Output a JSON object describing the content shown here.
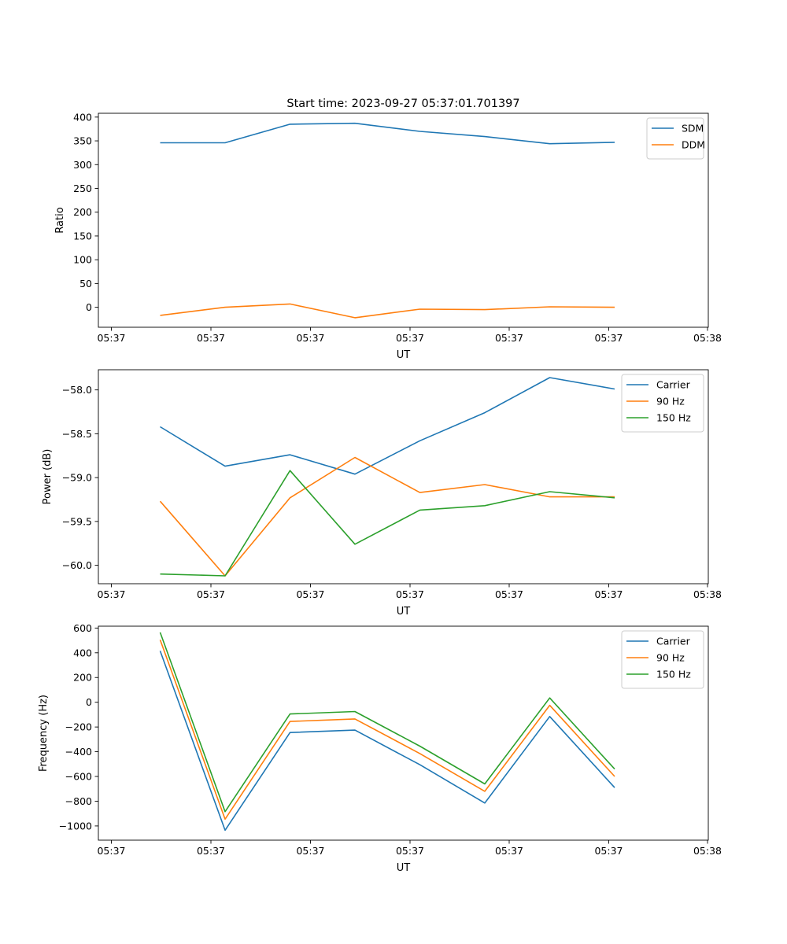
{
  "title": "Start time: 2023-09-27 05:37:01.701397",
  "colors": {
    "blue": "#1f77b4",
    "orange": "#ff7f0e",
    "green": "#2ca02c"
  },
  "chart_data": [
    {
      "type": "line",
      "xlabel": "UT",
      "ylabel": "Ratio",
      "x_tick_labels": [
        "05:37",
        "05:37",
        "05:37",
        "05:37",
        "05:37",
        "05:37",
        "05:37"
      ],
      "x_end_label": "05:38",
      "ylim": [
        -42,
        408
      ],
      "yticks": [
        0,
        50,
        100,
        150,
        200,
        250,
        300,
        350,
        400
      ],
      "ytick_labels": [
        "0",
        "50",
        "100",
        "150",
        "200",
        "250",
        "300",
        "350",
        "400"
      ],
      "legend_position": "top-right",
      "series": [
        {
          "name": "SDM",
          "color": "#1f77b4",
          "values": [
            346,
            346,
            385,
            387,
            370,
            359,
            344,
            347
          ]
        },
        {
          "name": "DDM",
          "color": "#ff7f0e",
          "values": [
            -17,
            0,
            7,
            -22,
            -4,
            -5,
            1,
            0
          ]
        }
      ]
    },
    {
      "type": "line",
      "xlabel": "UT",
      "ylabel": "Power (dB)",
      "x_tick_labels": [
        "05:37",
        "05:37",
        "05:37",
        "05:37",
        "05:37",
        "05:37",
        "05:37"
      ],
      "x_end_label": "05:38",
      "ylim": [
        -60.21,
        -57.77
      ],
      "yticks": [
        -60.0,
        -59.5,
        -59.0,
        -58.5,
        -58.0
      ],
      "ytick_labels": [
        "−60.0",
        "−59.5",
        "−59.0",
        "−58.5",
        "−58.0"
      ],
      "legend_position": "top-right",
      "series": [
        {
          "name": "Carrier",
          "color": "#1f77b4",
          "values": [
            -58.42,
            -58.87,
            -58.74,
            -58.96,
            -58.58,
            -58.26,
            -57.86,
            -57.99
          ]
        },
        {
          "name": "90 Hz",
          "color": "#ff7f0e",
          "values": [
            -59.27,
            -60.12,
            -59.23,
            -58.77,
            -59.17,
            -59.08,
            -59.22,
            -59.22
          ]
        },
        {
          "name": "150 Hz",
          "color": "#2ca02c",
          "values": [
            -60.1,
            -60.12,
            -58.92,
            -59.76,
            -59.37,
            -59.32,
            -59.16,
            -59.23
          ]
        }
      ]
    },
    {
      "type": "line",
      "xlabel": "UT",
      "ylabel": "Frequency (Hz)",
      "x_tick_labels": [
        "05:37",
        "05:37",
        "05:37",
        "05:37",
        "05:37",
        "05:37",
        "05:37"
      ],
      "x_end_label": "05:38",
      "ylim": [
        -1115,
        615
      ],
      "yticks": [
        -1000,
        -800,
        -600,
        -400,
        -200,
        0,
        200,
        400,
        600
      ],
      "ytick_labels": [
        "−1000",
        "−800",
        "−600",
        "−400",
        "−200",
        "0",
        "200",
        "400",
        "600"
      ],
      "legend_position": "top-right",
      "series": [
        {
          "name": "Carrier",
          "color": "#1f77b4",
          "values": [
            415,
            -1035,
            -245,
            -225,
            -505,
            -815,
            -115,
            -690
          ]
        },
        {
          "name": "90 Hz",
          "color": "#ff7f0e",
          "values": [
            505,
            -945,
            -155,
            -135,
            -415,
            -720,
            -25,
            -600
          ]
        },
        {
          "name": "150 Hz",
          "color": "#2ca02c",
          "values": [
            565,
            -885,
            -95,
            -75,
            -355,
            -660,
            35,
            -540
          ]
        }
      ]
    }
  ]
}
